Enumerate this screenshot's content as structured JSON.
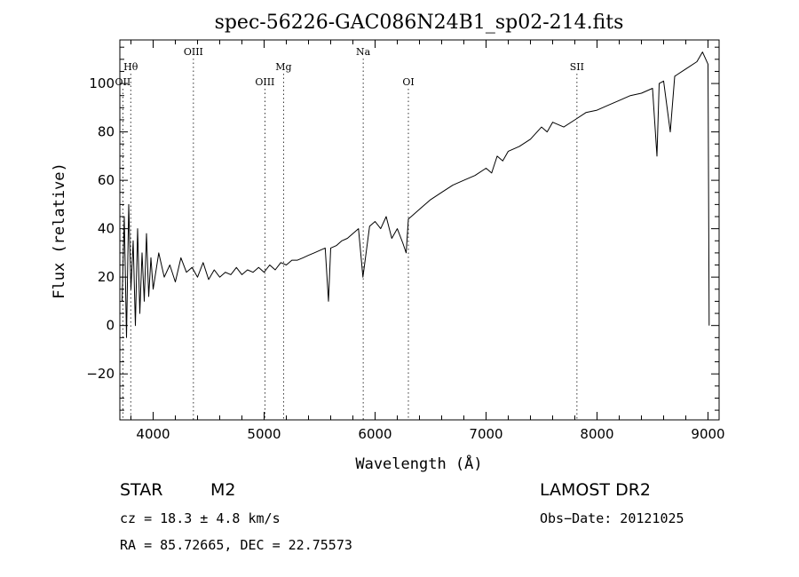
{
  "chart_data": {
    "type": "line",
    "title": "spec-56226-GAC086N24B1_sp02-214.fits",
    "xlabel": "Wavelength (Å)",
    "ylabel": "Flux (relative)",
    "xlim": [
      3700,
      9100
    ],
    "ylim": [
      -39,
      118
    ],
    "x_ticks": [
      4000,
      5000,
      6000,
      7000,
      8000,
      9000
    ],
    "y_ticks": [
      -20,
      0,
      20,
      40,
      60,
      80,
      100
    ],
    "x_tick_labels": [
      "4000",
      "5000",
      "6000",
      "7000",
      "8000",
      "9000"
    ],
    "y_tick_labels": [
      "−20",
      "0",
      "20",
      "40",
      "60",
      "80",
      "100"
    ],
    "grid": false,
    "series": [
      {
        "color": "#000000",
        "x": [
          3720,
          3740,
          3760,
          3780,
          3800,
          3820,
          3840,
          3860,
          3880,
          3900,
          3920,
          3940,
          3960,
          3980,
          4000,
          4050,
          4100,
          4150,
          4200,
          4250,
          4300,
          4350,
          4400,
          4450,
          4500,
          4550,
          4600,
          4650,
          4700,
          4750,
          4800,
          4850,
          4900,
          4950,
          5000,
          5050,
          5100,
          5150,
          5200,
          5250,
          5300,
          5350,
          5400,
          5450,
          5500,
          5550,
          5580,
          5600,
          5650,
          5700,
          5750,
          5800,
          5850,
          5890,
          5950,
          6000,
          6050,
          6100,
          6150,
          6200,
          6250,
          6280,
          6300,
          6350,
          6400,
          6500,
          6600,
          6700,
          6800,
          6900,
          7000,
          7050,
          7100,
          7150,
          7200,
          7300,
          7400,
          7500,
          7550,
          7600,
          7700,
          7800,
          7900,
          8000,
          8100,
          8200,
          8300,
          8400,
          8500,
          8540,
          8560,
          8600,
          8660,
          8700,
          8800,
          8900,
          8950,
          9000,
          9005,
          9010
        ],
        "y": [
          10,
          45,
          -5,
          50,
          15,
          35,
          0,
          40,
          5,
          30,
          10,
          38,
          12,
          28,
          15,
          30,
          20,
          25,
          18,
          28,
          22,
          24,
          20,
          26,
          19,
          23,
          20,
          22,
          21,
          24,
          21,
          23,
          22,
          24,
          22,
          25,
          23,
          26,
          25,
          27,
          27,
          28,
          29,
          30,
          31,
          32,
          10,
          32,
          33,
          35,
          36,
          38,
          40,
          20,
          41,
          43,
          40,
          45,
          36,
          40,
          34,
          30,
          44,
          46,
          48,
          52,
          55,
          58,
          60,
          62,
          65,
          63,
          70,
          68,
          72,
          74,
          77,
          82,
          80,
          84,
          82,
          85,
          88,
          89,
          91,
          93,
          95,
          96,
          98,
          70,
          100,
          101,
          80,
          103,
          106,
          109,
          113,
          108,
          60,
          0
        ]
      }
    ],
    "line_markers": [
      {
        "label": "Hθ",
        "x": 3798,
        "row": 2
      },
      {
        "label": "OII",
        "x": 3727,
        "row": 3
      },
      {
        "label": "OIII",
        "x": 4363,
        "row": 1
      },
      {
        "label": "OIII",
        "x": 5007,
        "row": 3
      },
      {
        "label": "Mg",
        "x": 5175,
        "row": 2
      },
      {
        "label": "Na",
        "x": 5893,
        "row": 1
      },
      {
        "label": "OI",
        "x": 6300,
        "row": 3
      },
      {
        "label": "SII",
        "x": 7819,
        "row": 2
      }
    ]
  },
  "info": {
    "class_label": "STAR",
    "subclass": "M2",
    "survey": "LAMOST DR2",
    "cz_label": "cz = 18.3 ± 4.8 km/s",
    "obs_date": "Obs−Date: 20121025",
    "coords": "RA =  85.72665, DEC =  22.75573"
  }
}
